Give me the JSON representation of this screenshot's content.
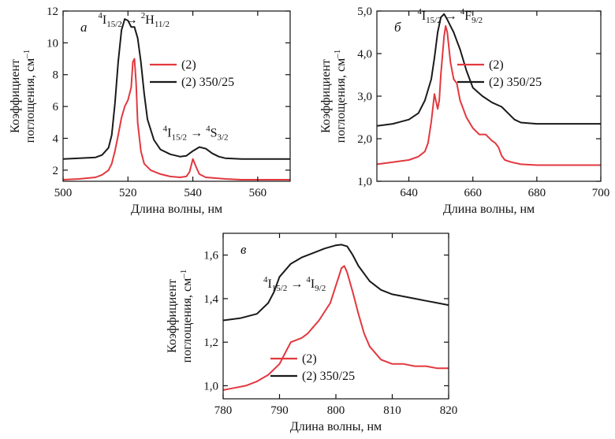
{
  "chart_data": [
    {
      "id": "a",
      "type": "line",
      "panel_label": "а",
      "xlabel": "Длина волны, нм",
      "ylabel_line1": "Коэффициент",
      "ylabel_line2": "поглощения, см",
      "ylabel_sup": "–1",
      "xlim": [
        500,
        570
      ],
      "ylim": [
        1.3,
        12
      ],
      "xticks": [
        500,
        520,
        540,
        560
      ],
      "yticks": [
        2,
        4,
        6,
        8,
        10,
        12
      ],
      "ytick_labels": [
        "2",
        "4",
        "6",
        "8",
        "10",
        "12"
      ],
      "legend": [
        {
          "label": "(2)",
          "color": "#e2383f"
        },
        {
          "label": "(2) 350/25",
          "color": "#1a1a1a"
        }
      ],
      "annotations": [
        {
          "base": "I",
          "sup1": "4",
          "sub1": "15/2",
          "arrow": "→",
          "sup2": "2",
          "base2": "H",
          "sub2": "11/2",
          "x": 521,
          "y": 11.2
        },
        {
          "base": "I",
          "sup1": "4",
          "sub1": "15/2",
          "arrow": "→",
          "sup2": "4",
          "base2": "S",
          "sub2": "3/2",
          "x": 541,
          "y": 4.1
        }
      ],
      "series": [
        {
          "name": "(2)",
          "color": "#e2383f",
          "x": [
            500,
            505,
            510,
            512,
            514,
            515,
            516,
            517,
            518,
            519,
            520,
            521,
            521.5,
            522,
            522.5,
            523,
            524,
            525,
            527,
            530,
            533,
            536,
            538,
            539,
            540,
            541,
            542,
            544,
            547,
            550,
            555,
            560,
            565,
            570
          ],
          "y": [
            1.4,
            1.45,
            1.55,
            1.7,
            2.0,
            2.4,
            3.2,
            4.2,
            5.3,
            6.0,
            6.4,
            7.2,
            8.8,
            9.0,
            7.5,
            5.0,
            3.2,
            2.4,
            2.0,
            1.75,
            1.6,
            1.55,
            1.6,
            1.9,
            2.7,
            2.2,
            1.75,
            1.55,
            1.5,
            1.45,
            1.4,
            1.4,
            1.4,
            1.4
          ]
        },
        {
          "name": "(2) 350/25",
          "color": "#1a1a1a",
          "x": [
            500,
            505,
            510,
            512,
            514,
            515,
            516,
            517,
            518,
            519,
            520,
            521,
            522,
            523,
            524,
            525,
            526,
            528,
            530,
            533,
            536,
            538,
            540,
            542,
            544,
            546,
            548,
            550,
            555,
            560,
            565,
            570
          ],
          "y": [
            2.7,
            2.75,
            2.8,
            2.95,
            3.4,
            4.2,
            6.2,
            8.8,
            10.8,
            11.5,
            11.4,
            11.0,
            11.0,
            10.3,
            8.8,
            6.8,
            5.2,
            3.9,
            3.3,
            3.0,
            2.85,
            2.9,
            3.2,
            3.45,
            3.35,
            3.05,
            2.85,
            2.75,
            2.7,
            2.7,
            2.7,
            2.7
          ]
        }
      ]
    },
    {
      "id": "b",
      "type": "line",
      "panel_label": "б",
      "xlabel": "Длина волны, нм",
      "ylabel_line1": "Коэффициент",
      "ylabel_line2": "поглощения, см",
      "ylabel_sup": "–1",
      "xlim": [
        630,
        700
      ],
      "ylim": [
        1.0,
        5.0
      ],
      "xticks": [
        640,
        660,
        680,
        700
      ],
      "yticks": [
        1.0,
        2.0,
        3.0,
        4.0,
        5.0
      ],
      "ytick_labels": [
        "1,0",
        "2,0",
        "3,0",
        "4,0",
        "5,0"
      ],
      "legend": [
        {
          "label": "(2)",
          "color": "#e2383f"
        },
        {
          "label": "(2) 350/25",
          "color": "#1a1a1a"
        }
      ],
      "annotations": [
        {
          "base": "I",
          "sup1": "4",
          "sub1": "15/2",
          "arrow": "→",
          "sup2": "4",
          "base2": "F",
          "sub2": "9/2",
          "x": 653,
          "y": 4.8
        }
      ],
      "series": [
        {
          "name": "(2)",
          "color": "#e2383f",
          "x": [
            630,
            635,
            640,
            643,
            645,
            646,
            647,
            648,
            649,
            649.5,
            650,
            651,
            651.5,
            652,
            653,
            654,
            655,
            656,
            658,
            660,
            662,
            664,
            666,
            667,
            668,
            669,
            670,
            672,
            675,
            680,
            690,
            700
          ],
          "y": [
            1.4,
            1.45,
            1.5,
            1.58,
            1.7,
            1.9,
            2.4,
            3.05,
            2.7,
            2.9,
            3.5,
            4.4,
            4.65,
            4.5,
            3.8,
            3.4,
            3.3,
            2.9,
            2.5,
            2.25,
            2.1,
            2.1,
            1.95,
            1.9,
            1.8,
            1.6,
            1.5,
            1.45,
            1.4,
            1.38,
            1.38,
            1.38
          ]
        },
        {
          "name": "(2) 350/25",
          "color": "#1a1a1a",
          "x": [
            630,
            635,
            640,
            643,
            645,
            647,
            648,
            649,
            650,
            651,
            652,
            653,
            654,
            655,
            656,
            658,
            660,
            663,
            666,
            669,
            671,
            673,
            675,
            680,
            690,
            700
          ],
          "y": [
            2.3,
            2.35,
            2.45,
            2.6,
            2.9,
            3.4,
            3.9,
            4.5,
            4.85,
            4.93,
            4.8,
            4.65,
            4.5,
            4.3,
            4.1,
            3.6,
            3.2,
            3.0,
            2.85,
            2.75,
            2.6,
            2.45,
            2.38,
            2.35,
            2.35,
            2.35
          ]
        }
      ]
    },
    {
      "id": "v",
      "type": "line",
      "panel_label": "в",
      "xlabel": "Длина волны, нм",
      "ylabel_line1": "Коэффициент",
      "ylabel_line2": "поглощения, см",
      "ylabel_sup": "–1",
      "xlim": [
        780,
        820
      ],
      "ylim": [
        0.94,
        1.7
      ],
      "xticks": [
        780,
        790,
        800,
        810,
        820
      ],
      "yticks": [
        1.0,
        1.2,
        1.4,
        1.6
      ],
      "ytick_labels": [
        "1,0",
        "1,2",
        "1,4",
        "1,6"
      ],
      "legend": [
        {
          "label": "(2)",
          "color": "#e2383f"
        },
        {
          "label": "(2) 350/25",
          "color": "#1a1a1a"
        }
      ],
      "annotations": [
        {
          "base": "I",
          "sup1": "4",
          "sub1": "15/2",
          "arrow": "→",
          "sup2": "4",
          "base2": "I",
          "sub2": "9/2",
          "x": 793,
          "y": 1.45
        }
      ],
      "series": [
        {
          "name": "(2)",
          "color": "#e2383f",
          "x": [
            780,
            782,
            784,
            786,
            788,
            790,
            791,
            792,
            793,
            794,
            795,
            796,
            797,
            798,
            799,
            800,
            800.5,
            801,
            801.5,
            802,
            803,
            804,
            805,
            806,
            808,
            810,
            812,
            814,
            816,
            818,
            820
          ],
          "y": [
            0.98,
            0.99,
            1.0,
            1.02,
            1.05,
            1.1,
            1.15,
            1.2,
            1.21,
            1.22,
            1.24,
            1.27,
            1.3,
            1.34,
            1.38,
            1.46,
            1.5,
            1.54,
            1.55,
            1.52,
            1.43,
            1.33,
            1.24,
            1.18,
            1.12,
            1.1,
            1.1,
            1.09,
            1.09,
            1.08,
            1.08
          ]
        },
        {
          "name": "(2) 350/25",
          "color": "#1a1a1a",
          "x": [
            780,
            783,
            786,
            788,
            789,
            790,
            792,
            794,
            796,
            798,
            800,
            801,
            802,
            803,
            804,
            806,
            808,
            810,
            812,
            814,
            816,
            818,
            820
          ],
          "y": [
            1.3,
            1.31,
            1.33,
            1.38,
            1.43,
            1.5,
            1.56,
            1.59,
            1.61,
            1.63,
            1.645,
            1.648,
            1.64,
            1.6,
            1.55,
            1.48,
            1.44,
            1.42,
            1.41,
            1.4,
            1.39,
            1.38,
            1.37
          ]
        }
      ]
    }
  ]
}
